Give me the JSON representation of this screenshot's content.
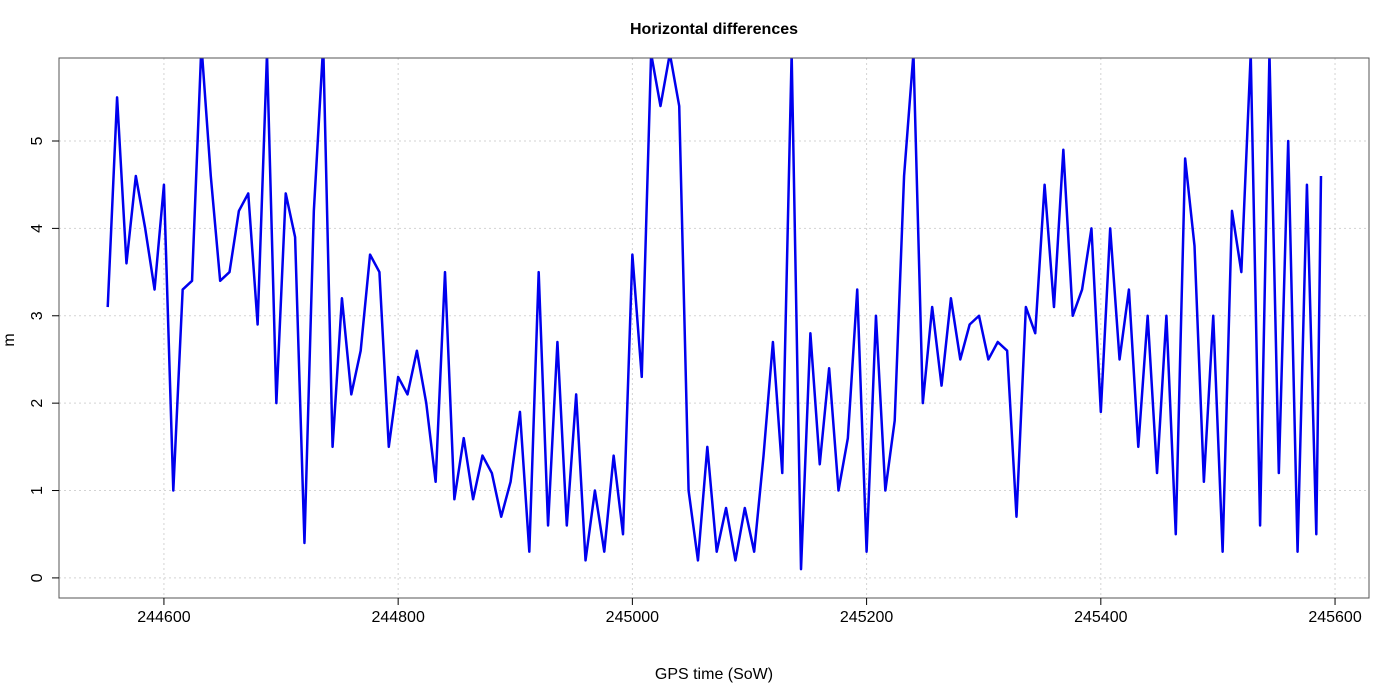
{
  "chart_data": {
    "type": "line",
    "title": "Horizontal differences",
    "x_label": "GPS time (SoW)",
    "y_label": "m",
    "xlim": [
      244510.4,
      245629
    ],
    "ylim": [
      -0.23,
      5.95
    ],
    "xticks": [
      244600,
      244800,
      245000,
      245200,
      245400,
      245600
    ],
    "yticks": [
      0,
      1,
      2,
      3,
      4,
      5
    ],
    "grid": true,
    "series": [
      {
        "name": "Horizontal differences",
        "color": "#0000ee",
        "x": [
          244552,
          244560,
          244568,
          244576,
          244584,
          244592,
          244600,
          244608,
          244616,
          244624,
          244632,
          244640,
          244648,
          244656,
          244664,
          244672,
          244680,
          244688,
          244696,
          244704,
          244712,
          244720,
          244728,
          244736,
          244744,
          244752,
          244760,
          244768,
          244776,
          244784,
          244792,
          244800,
          244808,
          244816,
          244824,
          244832,
          244840,
          244848,
          244856,
          244864,
          244872,
          244880,
          244888,
          244896,
          244904,
          244912,
          244920,
          244928,
          244936,
          244944,
          244952,
          244960,
          244968,
          244976,
          244984,
          244992,
          245000,
          245008,
          245016,
          245024,
          245032,
          245040,
          245048,
          245056,
          245064,
          245072,
          245080,
          245088,
          245096,
          245104,
          245112,
          245120,
          245128,
          245136,
          245144,
          245152,
          245160,
          245168,
          245176,
          245184,
          245192,
          245200,
          245208,
          245216,
          245224,
          245232,
          245240,
          245248,
          245256,
          245264,
          245272,
          245280,
          245288,
          245296,
          245304,
          245312,
          245320,
          245328,
          245336,
          245344,
          245352,
          245360,
          245368,
          245376,
          245384,
          245392,
          245400,
          245408,
          245416,
          245424,
          245432,
          245440,
          245448,
          245456,
          245464,
          245472,
          245480,
          245488,
          245496,
          245504,
          245512,
          245520,
          245528,
          245536,
          245544,
          245552,
          245560,
          245568,
          245576,
          245584,
          245588
        ],
        "values": [
          3.1,
          5.5,
          3.6,
          4.6,
          4.0,
          3.3,
          4.5,
          1.0,
          3.3,
          3.4,
          6.1,
          4.6,
          3.4,
          3.5,
          4.2,
          4.4,
          2.9,
          6.0,
          2.0,
          4.4,
          3.9,
          0.4,
          4.2,
          6.1,
          1.5,
          3.2,
          2.1,
          2.6,
          3.7,
          3.5,
          1.5,
          2.3,
          2.1,
          2.6,
          2.0,
          1.1,
          3.5,
          0.9,
          1.6,
          0.9,
          1.4,
          1.2,
          0.7,
          1.1,
          1.9,
          0.3,
          3.5,
          0.6,
          2.7,
          0.6,
          2.1,
          0.2,
          1.0,
          0.3,
          1.4,
          0.5,
          3.7,
          2.3,
          6.0,
          5.4,
          6.0,
          5.4,
          1.0,
          0.2,
          1.5,
          0.3,
          0.8,
          0.2,
          0.8,
          0.3,
          1.4,
          2.7,
          1.2,
          6.0,
          0.1,
          2.8,
          1.3,
          2.4,
          1.0,
          1.6,
          3.3,
          0.3,
          3.0,
          1.0,
          1.8,
          4.6,
          6.0,
          2.0,
          3.1,
          2.2,
          3.2,
          2.5,
          2.9,
          3.0,
          2.5,
          2.7,
          2.6,
          0.7,
          3.1,
          2.8,
          4.5,
          3.1,
          4.9,
          3.0,
          3.3,
          4.0,
          1.9,
          4.0,
          2.5,
          3.3,
          1.5,
          3.0,
          1.2,
          3.0,
          0.5,
          4.8,
          3.8,
          1.1,
          3.0,
          0.3,
          4.2,
          3.5,
          6.0,
          0.6,
          6.0,
          1.2,
          5.0,
          0.3,
          4.5,
          0.5,
          4.6
        ]
      }
    ]
  }
}
